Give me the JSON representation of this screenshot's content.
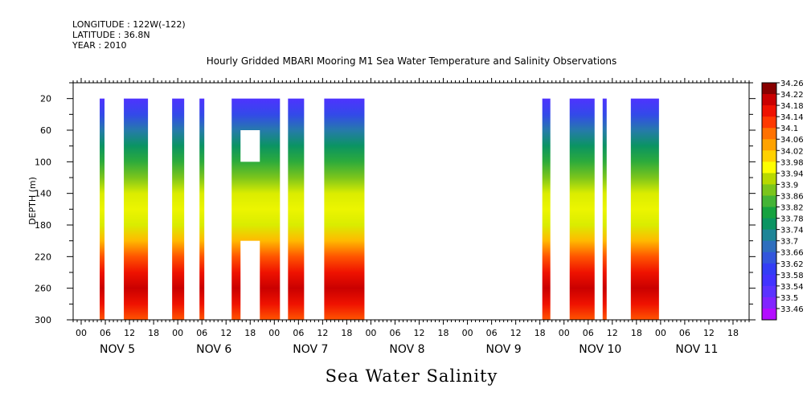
{
  "header": {
    "longitude": "LONGITUDE : 122W(-122)",
    "latitude": "LATITUDE : 36.8N",
    "year": "YEAR : 2010"
  },
  "chart_data": {
    "type": "heatmap",
    "title": "Hourly Gridded MBARI Mooring M1 Sea Water Temperature and Salinity Observations",
    "xlabel": "Sea Water Salinity",
    "ylabel": "DEPTH (m)",
    "x_hour_range": [
      -2,
      166
    ],
    "ylim": [
      0,
      300
    ],
    "y_ticks": [
      20,
      60,
      100,
      140,
      180,
      220,
      260,
      300
    ],
    "x_ticks": [
      {
        "hour": 0,
        "label": "00"
      },
      {
        "hour": 6,
        "label": "06"
      },
      {
        "hour": 12,
        "label": "12"
      },
      {
        "hour": 18,
        "label": "18"
      },
      {
        "hour": 24,
        "label": "00"
      },
      {
        "hour": 30,
        "label": "06"
      },
      {
        "hour": 36,
        "label": "12"
      },
      {
        "hour": 42,
        "label": "18"
      },
      {
        "hour": 48,
        "label": "00"
      },
      {
        "hour": 54,
        "label": "06"
      },
      {
        "hour": 60,
        "label": "12"
      },
      {
        "hour": 66,
        "label": "18"
      },
      {
        "hour": 72,
        "label": "00"
      },
      {
        "hour": 78,
        "label": "06"
      },
      {
        "hour": 84,
        "label": "12"
      },
      {
        "hour": 90,
        "label": "18"
      },
      {
        "hour": 96,
        "label": "00"
      },
      {
        "hour": 102,
        "label": "06"
      },
      {
        "hour": 108,
        "label": "12"
      },
      {
        "hour": 114,
        "label": "18"
      },
      {
        "hour": 120,
        "label": "00"
      },
      {
        "hour": 126,
        "label": "06"
      },
      {
        "hour": 132,
        "label": "12"
      },
      {
        "hour": 138,
        "label": "18"
      },
      {
        "hour": 144,
        "label": "00"
      },
      {
        "hour": 150,
        "label": "06"
      },
      {
        "hour": 156,
        "label": "12"
      },
      {
        "hour": 162,
        "label": "18"
      }
    ],
    "day_labels": [
      {
        "hour": 9,
        "label": "NOV  5"
      },
      {
        "hour": 33,
        "label": "NOV  6"
      },
      {
        "hour": 57,
        "label": "NOV  7"
      },
      {
        "hour": 81,
        "label": "NOV  8"
      },
      {
        "hour": 105,
        "label": "NOV  9"
      },
      {
        "hour": 129,
        "label": "NOV 10"
      },
      {
        "hour": 153,
        "label": "NOV 11"
      }
    ],
    "data_columns": [
      {
        "start": 4.6,
        "end": 5.8
      },
      {
        "start": 10.6,
        "end": 16.6
      },
      {
        "start": 22.6,
        "end": 25.6
      },
      {
        "start": 29.4,
        "end": 30.6
      },
      {
        "start": 37.4,
        "end": 49.4
      },
      {
        "start": 51.4,
        "end": 55.4
      },
      {
        "start": 60.4,
        "end": 70.4
      },
      {
        "start": 114.6,
        "end": 116.6
      },
      {
        "start": 121.4,
        "end": 127.6
      },
      {
        "start": 129.6,
        "end": 130.6
      },
      {
        "start": 136.6,
        "end": 143.6
      }
    ],
    "missing_regions": [
      {
        "start": 39.6,
        "end": 44.4,
        "depth_top": 60,
        "depth_bottom": 100
      },
      {
        "start": 39.6,
        "end": 44.4,
        "depth_top": 200,
        "depth_bottom": 300
      }
    ],
    "profile_depths": [
      20,
      40,
      60,
      80,
      100,
      120,
      140,
      160,
      180,
      200,
      220,
      240,
      260,
      280,
      300
    ],
    "profile_values": [
      33.58,
      33.66,
      33.74,
      33.8,
      33.86,
      33.92,
      33.98,
      33.99,
      33.98,
      34.06,
      34.14,
      34.2,
      34.24,
      34.2,
      34.14
    ],
    "colorbar": {
      "levels": [
        "34.26",
        "34.22",
        "34.18",
        "34.14",
        "34.1",
        "34.06",
        "34.02",
        "33.98",
        "33.94",
        "33.9",
        "33.86",
        "33.82",
        "33.78",
        "33.74",
        "33.7",
        "33.66",
        "33.62",
        "33.58",
        "33.54",
        "33.5",
        "33.46"
      ],
      "min": 33.46,
      "max": 34.28
    }
  }
}
